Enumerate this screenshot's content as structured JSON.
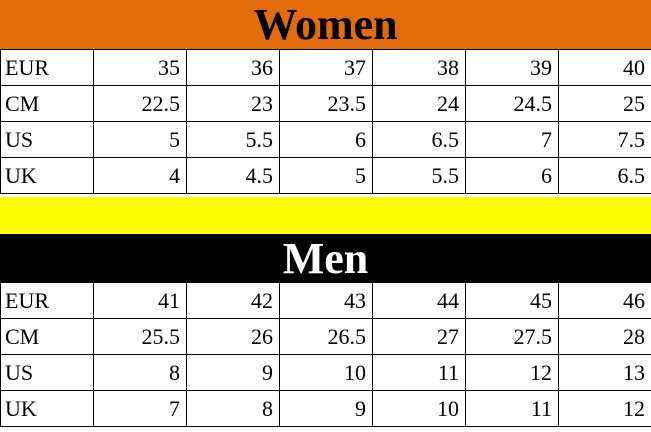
{
  "women": {
    "title": "Women",
    "header_color": "#E36C0A",
    "rows": [
      {
        "label": "EUR",
        "values": [
          "35",
          "36",
          "37",
          "38",
          "39",
          "40"
        ]
      },
      {
        "label": "CM",
        "values": [
          "22.5",
          "23",
          "23.5",
          "24",
          "24.5",
          "25"
        ]
      },
      {
        "label": "US",
        "values": [
          "5",
          "5.5",
          "6",
          "6.5",
          "7",
          "7.5"
        ]
      },
      {
        "label": "UK",
        "values": [
          "4",
          "4.5",
          "5",
          "5.5",
          "6",
          "6.5"
        ]
      }
    ]
  },
  "divider_color": "#FFFF00",
  "men": {
    "title": "Men",
    "header_color": "#000000",
    "rows": [
      {
        "label": "EUR",
        "values": [
          "41",
          "42",
          "43",
          "44",
          "45",
          "46"
        ]
      },
      {
        "label": "CM",
        "values": [
          "25.5",
          "26",
          "26.5",
          "27",
          "27.5",
          "28"
        ]
      },
      {
        "label": "US",
        "values": [
          "8",
          "9",
          "10",
          "11",
          "12",
          "13"
        ]
      },
      {
        "label": "UK",
        "values": [
          "7",
          "8",
          "9",
          "10",
          "11",
          "12"
        ]
      }
    ]
  }
}
